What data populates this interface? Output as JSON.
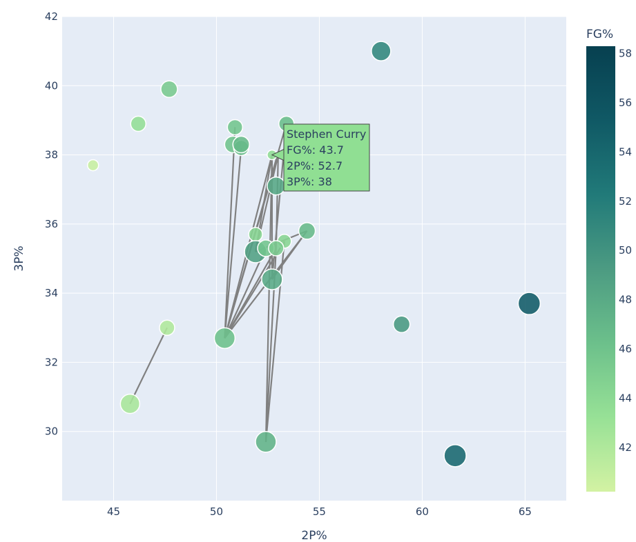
{
  "chart_data": {
    "type": "scatter",
    "xlabel": "2P%",
    "ylabel": "3P%",
    "xlim": [
      42.5,
      67
    ],
    "ylim": [
      28,
      42
    ],
    "xticks": [
      45,
      50,
      55,
      60,
      65
    ],
    "yticks": [
      30,
      32,
      34,
      36,
      38,
      40,
      42
    ],
    "grid": true,
    "colorbar": {
      "title": "FG%",
      "range": [
        40.2,
        58.3
      ],
      "ticks": [
        42,
        44,
        46,
        48,
        50,
        52,
        54,
        56,
        58
      ],
      "colorscale": [
        "#d3f2a3",
        "#97e196",
        "#6cc08b",
        "#4c9b82",
        "#217a79",
        "#105965",
        "#074050"
      ]
    },
    "points": [
      {
        "x": 44.0,
        "y": 37.7,
        "fg": 40.8,
        "size": 8
      },
      {
        "x": 46.2,
        "y": 38.9,
        "fg": 43.5,
        "size": 11
      },
      {
        "x": 47.7,
        "y": 39.9,
        "fg": 45.3,
        "size": 12
      },
      {
        "x": 45.8,
        "y": 30.8,
        "fg": 42.3,
        "size": 14
      },
      {
        "x": 47.6,
        "y": 33.0,
        "fg": 42.0,
        "size": 11
      },
      {
        "x": 50.9,
        "y": 38.8,
        "fg": 45.8,
        "size": 11
      },
      {
        "x": 50.8,
        "y": 38.3,
        "fg": 46.0,
        "size": 12
      },
      {
        "x": 51.2,
        "y": 38.2,
        "fg": 46.5,
        "size": 11
      },
      {
        "x": 51.2,
        "y": 38.3,
        "fg": 46.8,
        "size": 12
      },
      {
        "x": 53.4,
        "y": 38.9,
        "fg": 46.5,
        "size": 11
      },
      {
        "x": 52.7,
        "y": 38.0,
        "fg": 43.7,
        "size": 7
      },
      {
        "x": 52.9,
        "y": 37.1,
        "fg": 48.3,
        "size": 13
      },
      {
        "x": 51.9,
        "y": 35.7,
        "fg": 44.3,
        "size": 10
      },
      {
        "x": 53.3,
        "y": 35.5,
        "fg": 44.3,
        "size": 10
      },
      {
        "x": 54.4,
        "y": 35.8,
        "fg": 46.8,
        "size": 12
      },
      {
        "x": 51.9,
        "y": 35.2,
        "fg": 48.8,
        "size": 16
      },
      {
        "x": 52.4,
        "y": 35.3,
        "fg": 45.8,
        "size": 12
      },
      {
        "x": 52.9,
        "y": 35.3,
        "fg": 45.2,
        "size": 11
      },
      {
        "x": 52.7,
        "y": 34.4,
        "fg": 48.0,
        "size": 15
      },
      {
        "x": 50.4,
        "y": 32.7,
        "fg": 46.2,
        "size": 15
      },
      {
        "x": 52.4,
        "y": 29.7,
        "fg": 47.3,
        "size": 15
      },
      {
        "x": 58.0,
        "y": 41.0,
        "fg": 51.2,
        "size": 14
      },
      {
        "x": 59.0,
        "y": 33.1,
        "fg": 49.5,
        "size": 12
      },
      {
        "x": 61.6,
        "y": 29.3,
        "fg": 54.0,
        "size": 16
      },
      {
        "x": 65.2,
        "y": 33.7,
        "fg": 55.2,
        "size": 16
      }
    ],
    "lines": [
      {
        "x": [
          45.8,
          47.6
        ],
        "y": [
          30.8,
          33.0
        ]
      },
      {
        "x": [
          50.4,
          50.9
        ],
        "y": [
          32.7,
          38.8
        ]
      },
      {
        "x": [
          50.4,
          51.2
        ],
        "y": [
          32.7,
          38.2
        ]
      },
      {
        "x": [
          50.4,
          52.7
        ],
        "y": [
          32.7,
          38.0
        ]
      },
      {
        "x": [
          50.4,
          53.0
        ],
        "y": [
          32.7,
          38.0
        ]
      },
      {
        "x": [
          50.4,
          53.4
        ],
        "y": [
          32.7,
          38.9
        ]
      },
      {
        "x": [
          50.4,
          52.4
        ],
        "y": [
          32.7,
          35.3
        ]
      },
      {
        "x": [
          50.4,
          52.9
        ],
        "y": [
          32.7,
          35.3
        ]
      },
      {
        "x": [
          50.4,
          53.3
        ],
        "y": [
          32.7,
          35.5
        ]
      },
      {
        "x": [
          50.4,
          54.4
        ],
        "y": [
          32.7,
          35.8
        ]
      },
      {
        "x": [
          51.9,
          52.7
        ],
        "y": [
          35.2,
          38.0
        ]
      },
      {
        "x": [
          51.9,
          53.0
        ],
        "y": [
          35.2,
          38.0
        ]
      },
      {
        "x": [
          51.9,
          54.4
        ],
        "y": [
          35.2,
          35.8
        ]
      },
      {
        "x": [
          52.4,
          52.7
        ],
        "y": [
          29.7,
          38.0
        ]
      },
      {
        "x": [
          52.4,
          53.3
        ],
        "y": [
          29.7,
          35.5
        ]
      },
      {
        "x": [
          52.4,
          52.9
        ],
        "y": [
          29.7,
          35.3
        ]
      },
      {
        "x": [
          52.7,
          53.4
        ],
        "y": [
          34.4,
          38.9
        ]
      },
      {
        "x": [
          52.7,
          54.4
        ],
        "y": [
          34.4,
          35.8
        ]
      },
      {
        "x": [
          52.7,
          52.7
        ],
        "y": [
          34.4,
          38.0
        ]
      },
      {
        "x": [
          52.9,
          53.0
        ],
        "y": [
          35.3,
          38.0
        ]
      }
    ],
    "hover": {
      "name": "Stephen Curry",
      "fg_line": "FG%: 43.7",
      "twop_line": "2P%: 52.7",
      "threep_line": "3P%: 38",
      "x": 52.7,
      "y": 38.0,
      "bg_color": "#90df93"
    }
  }
}
